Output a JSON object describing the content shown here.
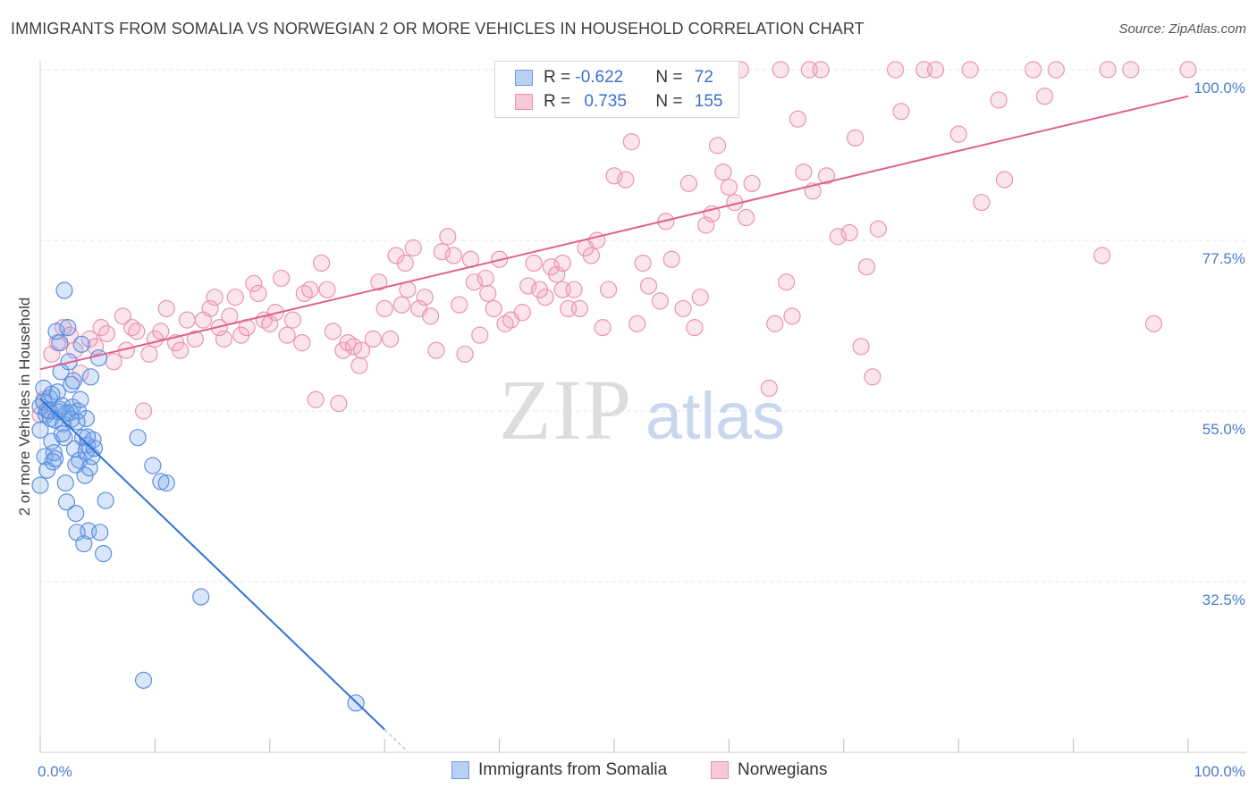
{
  "title": "IMMIGRANTS FROM SOMALIA VS NORWEGIAN 2 OR MORE VEHICLES IN HOUSEHOLD CORRELATION CHART",
  "source": "Source: ZipAtlas.com",
  "watermark": {
    "zip": "ZIP",
    "atlas": "atlas"
  },
  "legend": {
    "rows": [
      {
        "r_label": "R = ",
        "r_value": "-0.622",
        "n_label": "N = ",
        "n_value": "72"
      },
      {
        "r_label": "R = ",
        "r_value": "0.735",
        "n_label": "N = ",
        "n_value": "155"
      }
    ]
  },
  "chart_data": {
    "type": "scatter",
    "title": "IMMIGRANTS FROM SOMALIA VS NORWEGIAN 2 OR MORE VEHICLES IN HOUSEHOLD CORRELATION CHART",
    "xlabel": "",
    "ylabel": "2 or more Vehicles in Household",
    "xlim": [
      0,
      100
    ],
    "ylim": [
      10,
      102
    ],
    "x_tick_labels": [
      "0.0%",
      "100.0%"
    ],
    "y_ticks": [
      {
        "value": 100.0,
        "label": "100.0%"
      },
      {
        "value": 77.5,
        "label": "77.5%"
      },
      {
        "value": 55.0,
        "label": "55.0%"
      },
      {
        "value": 32.5,
        "label": "32.5%"
      }
    ],
    "grid": true,
    "colors": {
      "somalia": "#5b8fe0",
      "norwegians": "#e88aaa",
      "somalia_line": "#2f72d6",
      "norwegians_line": "#e0608e"
    },
    "series": [
      {
        "name": "Immigrants from Somalia",
        "trend": {
          "x": [
            0,
            30
          ],
          "y": [
            56.6,
            13.0
          ]
        },
        "points": [
          [
            0.0,
            45.2
          ],
          [
            0.0,
            52.5
          ],
          [
            0.0,
            55.6
          ],
          [
            0.3,
            58.0
          ],
          [
            0.4,
            49.0
          ],
          [
            0.5,
            54.5
          ],
          [
            0.6,
            47.2
          ],
          [
            0.8,
            56.7
          ],
          [
            0.9,
            54.0
          ],
          [
            1.0,
            51.0
          ],
          [
            1.1,
            48.3
          ],
          [
            1.2,
            49.5
          ],
          [
            1.3,
            53.8
          ],
          [
            1.4,
            65.5
          ],
          [
            1.5,
            57.5
          ],
          [
            1.6,
            54.9
          ],
          [
            1.7,
            64.0
          ],
          [
            1.8,
            60.2
          ],
          [
            1.9,
            55.7
          ],
          [
            2.0,
            53.3
          ],
          [
            2.1,
            51.5
          ],
          [
            2.2,
            45.5
          ],
          [
            2.3,
            43.0
          ],
          [
            2.4,
            66.0
          ],
          [
            2.5,
            61.5
          ],
          [
            2.6,
            54.8
          ],
          [
            2.7,
            58.5
          ],
          [
            2.8,
            55.5
          ],
          [
            2.9,
            59.0
          ],
          [
            3.0,
            50.0
          ],
          [
            3.1,
            41.5
          ],
          [
            3.2,
            39.0
          ],
          [
            3.3,
            55.0
          ],
          [
            3.4,
            48.5
          ],
          [
            3.5,
            56.5
          ],
          [
            3.6,
            63.8
          ],
          [
            3.7,
            51.5
          ],
          [
            3.8,
            37.5
          ],
          [
            3.9,
            46.5
          ],
          [
            4.0,
            54.0
          ],
          [
            4.1,
            50.5
          ],
          [
            4.2,
            39.2
          ],
          [
            4.3,
            47.5
          ],
          [
            4.4,
            59.5
          ],
          [
            4.5,
            49.0
          ],
          [
            4.6,
            51.2
          ],
          [
            5.2,
            39.0
          ],
          [
            5.5,
            36.2
          ],
          [
            5.7,
            43.2
          ],
          [
            8.5,
            51.5
          ],
          [
            9.0,
            19.5
          ],
          [
            9.8,
            47.8
          ],
          [
            10.5,
            45.7
          ],
          [
            11.0,
            45.5
          ],
          [
            14.0,
            30.5
          ],
          [
            27.5,
            16.5
          ],
          [
            2.1,
            70.9
          ],
          [
            5.1,
            62.0
          ],
          [
            1.0,
            57.2
          ],
          [
            0.6,
            55.1
          ],
          [
            1.9,
            52.0
          ],
          [
            2.7,
            53.9
          ],
          [
            3.1,
            47.9
          ],
          [
            4.0,
            49.7
          ],
          [
            4.7,
            50.1
          ],
          [
            0.3,
            56.2
          ],
          [
            0.8,
            55.0
          ],
          [
            1.7,
            55.2
          ],
          [
            2.3,
            54.7
          ],
          [
            3.2,
            53.6
          ],
          [
            4.1,
            51.6
          ],
          [
            1.3,
            48.7
          ]
        ]
      },
      {
        "name": "Norwegians",
        "trend": {
          "x": [
            0,
            100
          ],
          "y": [
            60.5,
            96.5
          ]
        },
        "points": [
          [
            0.0,
            54.5
          ],
          [
            0.3,
            56.5
          ],
          [
            1.0,
            62.5
          ],
          [
            1.5,
            64.0
          ],
          [
            2.0,
            66.0
          ],
          [
            2.6,
            65.0
          ],
          [
            3.0,
            63.0
          ],
          [
            3.5,
            60.0
          ],
          [
            4.3,
            64.5
          ],
          [
            4.8,
            63.5
          ],
          [
            5.3,
            66.0
          ],
          [
            5.8,
            65.2
          ],
          [
            6.4,
            61.5
          ],
          [
            7.2,
            67.5
          ],
          [
            7.5,
            63.0
          ],
          [
            8.0,
            66.0
          ],
          [
            8.4,
            65.5
          ],
          [
            9.0,
            55.0
          ],
          [
            9.5,
            62.5
          ],
          [
            10.0,
            64.5
          ],
          [
            10.5,
            65.5
          ],
          [
            11.0,
            68.5
          ],
          [
            11.8,
            64.0
          ],
          [
            12.2,
            63.0
          ],
          [
            12.8,
            67.0
          ],
          [
            13.5,
            64.5
          ],
          [
            14.2,
            67.0
          ],
          [
            14.8,
            68.5
          ],
          [
            15.2,
            70.0
          ],
          [
            15.6,
            66.0
          ],
          [
            16.0,
            64.5
          ],
          [
            16.5,
            67.5
          ],
          [
            17.0,
            70.0
          ],
          [
            17.5,
            65.0
          ],
          [
            18.0,
            66.0
          ],
          [
            18.6,
            71.8
          ],
          [
            19.0,
            70.5
          ],
          [
            19.5,
            67.0
          ],
          [
            20.0,
            66.5
          ],
          [
            20.5,
            68.0
          ],
          [
            21.0,
            72.5
          ],
          [
            21.5,
            65.0
          ],
          [
            22.0,
            67.0
          ],
          [
            22.8,
            64.0
          ],
          [
            23.0,
            70.5
          ],
          [
            23.5,
            71.0
          ],
          [
            24.0,
            56.5
          ],
          [
            24.5,
            74.5
          ],
          [
            25.0,
            71.0
          ],
          [
            25.5,
            65.5
          ],
          [
            26.0,
            56.0
          ],
          [
            26.4,
            63.0
          ],
          [
            26.8,
            64.0
          ],
          [
            27.3,
            63.5
          ],
          [
            27.8,
            61.0
          ],
          [
            28.0,
            63.0
          ],
          [
            29.0,
            64.5
          ],
          [
            29.5,
            72.0
          ],
          [
            30.0,
            68.5
          ],
          [
            30.5,
            64.5
          ],
          [
            31.0,
            75.5
          ],
          [
            31.5,
            69.0
          ],
          [
            31.8,
            74.5
          ],
          [
            32.0,
            71.0
          ],
          [
            32.5,
            76.5
          ],
          [
            33.0,
            68.5
          ],
          [
            33.5,
            70.0
          ],
          [
            34.0,
            67.5
          ],
          [
            34.5,
            63.0
          ],
          [
            35.0,
            76.0
          ],
          [
            35.5,
            78.0
          ],
          [
            36.0,
            75.5
          ],
          [
            36.5,
            69.0
          ],
          [
            37.0,
            62.5
          ],
          [
            37.5,
            75.0
          ],
          [
            37.8,
            72.0
          ],
          [
            38.3,
            65.0
          ],
          [
            38.8,
            72.5
          ],
          [
            39.0,
            70.5
          ],
          [
            39.5,
            68.5
          ],
          [
            40.0,
            75.0
          ],
          [
            40.5,
            66.5
          ],
          [
            41.0,
            67.0
          ],
          [
            42.0,
            68.0
          ],
          [
            42.5,
            71.5
          ],
          [
            43.0,
            74.5
          ],
          [
            43.5,
            71.0
          ],
          [
            44.0,
            70.0
          ],
          [
            44.5,
            74.0
          ],
          [
            45.0,
            73.0
          ],
          [
            45.5,
            71.0
          ],
          [
            45.5,
            74.5
          ],
          [
            46.0,
            68.5
          ],
          [
            46.5,
            71.0
          ],
          [
            47.0,
            68.5
          ],
          [
            47.5,
            76.5
          ],
          [
            48.0,
            75.5
          ],
          [
            48.5,
            77.5
          ],
          [
            49.0,
            66.0
          ],
          [
            49.5,
            71.0
          ],
          [
            50.0,
            86.0
          ],
          [
            51.0,
            85.5
          ],
          [
            51.5,
            90.5
          ],
          [
            52.0,
            66.5
          ],
          [
            52.5,
            74.5
          ],
          [
            53.0,
            71.5
          ],
          [
            54.0,
            69.5
          ],
          [
            54.5,
            80.0
          ],
          [
            55.0,
            75.0
          ],
          [
            56.0,
            68.5
          ],
          [
            56.5,
            85.0
          ],
          [
            57.0,
            66.0
          ],
          [
            57.5,
            70.0
          ],
          [
            58.0,
            79.5
          ],
          [
            58.5,
            81.0
          ],
          [
            59.0,
            90.0
          ],
          [
            59.5,
            86.5
          ],
          [
            60.0,
            84.5
          ],
          [
            60.5,
            82.5
          ],
          [
            61.0,
            100.0
          ],
          [
            61.5,
            80.5
          ],
          [
            62.0,
            85.0
          ],
          [
            63.5,
            58.0
          ],
          [
            64.0,
            66.5
          ],
          [
            64.5,
            100.0
          ],
          [
            65.0,
            72.0
          ],
          [
            65.5,
            67.5
          ],
          [
            66.0,
            93.5
          ],
          [
            66.5,
            86.5
          ],
          [
            67.0,
            100.0
          ],
          [
            67.3,
            84.0
          ],
          [
            68.0,
            100.0
          ],
          [
            68.5,
            86.0
          ],
          [
            69.5,
            78.0
          ],
          [
            70.5,
            78.5
          ],
          [
            71.0,
            91.0
          ],
          [
            71.5,
            63.5
          ],
          [
            72.0,
            74.0
          ],
          [
            72.5,
            59.5
          ],
          [
            73.0,
            79.0
          ],
          [
            74.5,
            100.0
          ],
          [
            75.0,
            94.5
          ],
          [
            77.0,
            100.0
          ],
          [
            78.0,
            100.0
          ],
          [
            80.0,
            91.5
          ],
          [
            81.0,
            100.0
          ],
          [
            82.0,
            82.5
          ],
          [
            83.5,
            96.0
          ],
          [
            84.0,
            85.5
          ],
          [
            86.5,
            100.0
          ],
          [
            87.5,
            96.5
          ],
          [
            88.5,
            100.0
          ],
          [
            92.5,
            75.5
          ],
          [
            93.0,
            100.0
          ],
          [
            95.0,
            100.0
          ],
          [
            97.0,
            66.5
          ],
          [
            100.0,
            100.0
          ]
        ]
      }
    ]
  },
  "bottom_legend": [
    {
      "label": "Immigrants from Somalia"
    },
    {
      "label": "Norwegians"
    }
  ]
}
